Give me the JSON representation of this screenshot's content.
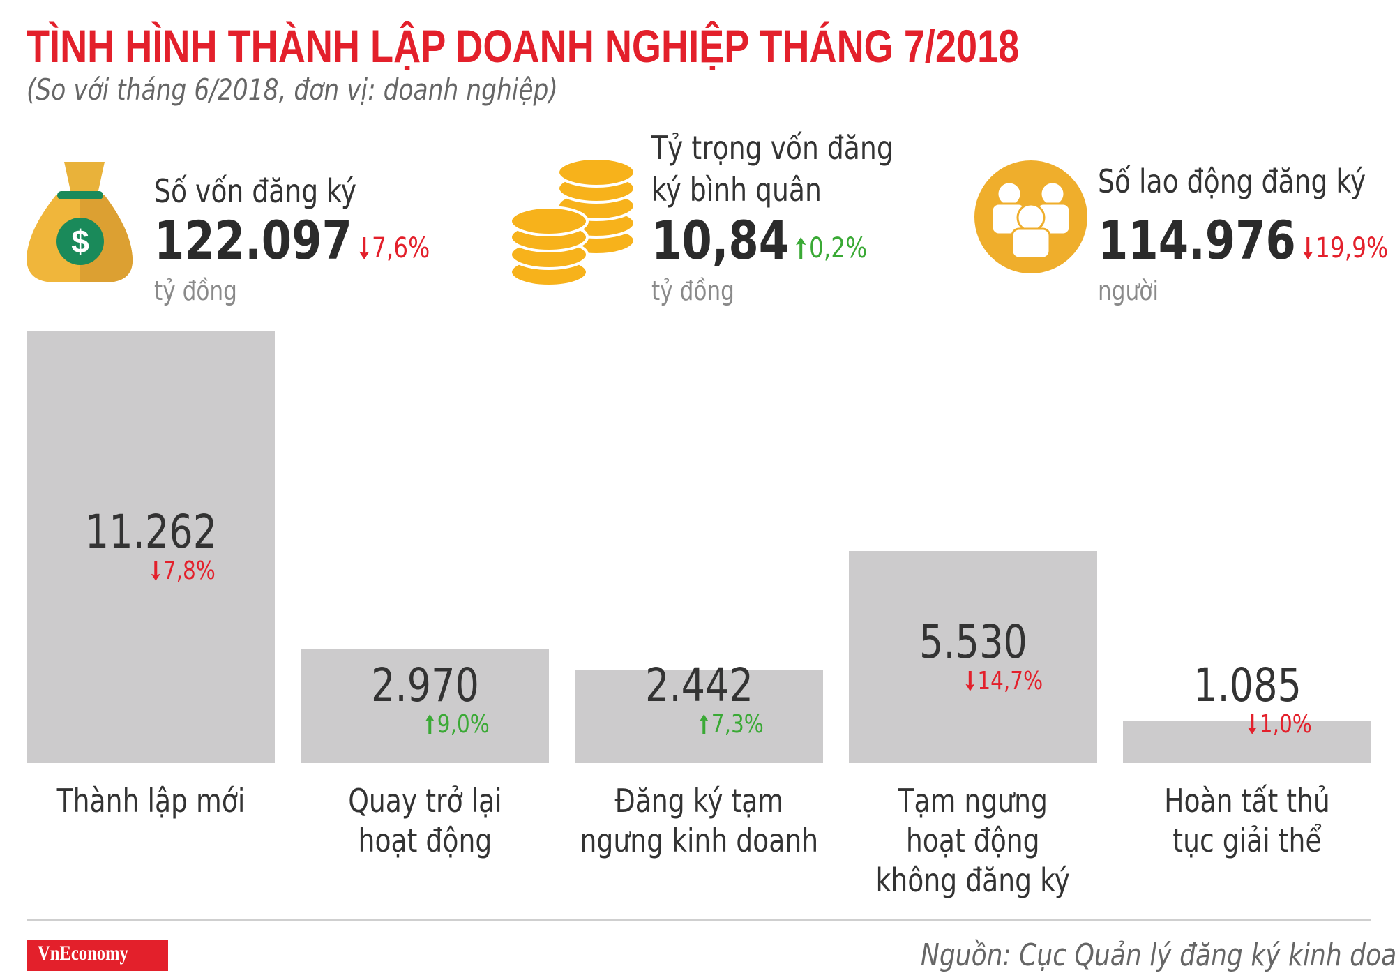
{
  "header": {
    "title": "TÌNH HÌNH THÀNH LẬP DOANH NGHIỆP THÁNG 7/2018",
    "subtitle": "(So với tháng 6/2018, đơn vị: doanh nghiệp)"
  },
  "kpis": [
    {
      "label": "Số vốn đăng ký",
      "value": "122.097",
      "change": {
        "value": -7.6,
        "label": "7,6%"
      },
      "unit": "tỷ đồng"
    },
    {
      "label": "Tỷ trọng vốn đăng\nký bình quân",
      "value": "10,84",
      "change": {
        "value": 0.2,
        "label": "0,2%"
      },
      "unit": "tỷ đồng"
    },
    {
      "label": "Số lao động đăng ký",
      "value": "114.976",
      "change": {
        "value": -19.9,
        "label": "19,9%"
      },
      "unit": "người"
    }
  ],
  "chart_data": {
    "type": "bar",
    "categories": [
      "Thành lập mới",
      "Quay trở lại\nhoạt động",
      "Đăng ký tạm\nngưng kinh doanh",
      "Tạm ngưng\nhoạt động\nkhông đăng ký",
      "Hoàn tất thủ\ntục giải thể"
    ],
    "values": [
      11262,
      2970,
      2442,
      5530,
      1085
    ],
    "value_labels": [
      "11.262",
      "2.970",
      "2.442",
      "5.530",
      "1.085"
    ],
    "changes": [
      {
        "value": -7.8,
        "label": "7,8%"
      },
      {
        "value": 9.0,
        "label": "9,0%"
      },
      {
        "value": 7.3,
        "label": "7,3%"
      },
      {
        "value": -14.7,
        "label": "14,7%"
      },
      {
        "value": -1.0,
        "label": "1,0%"
      }
    ],
    "color": "#cccbcc"
  },
  "footer": {
    "logo": "VnEconomy",
    "source": "Nguồn: Cục Quản lý đăng ký kinh doanh"
  }
}
